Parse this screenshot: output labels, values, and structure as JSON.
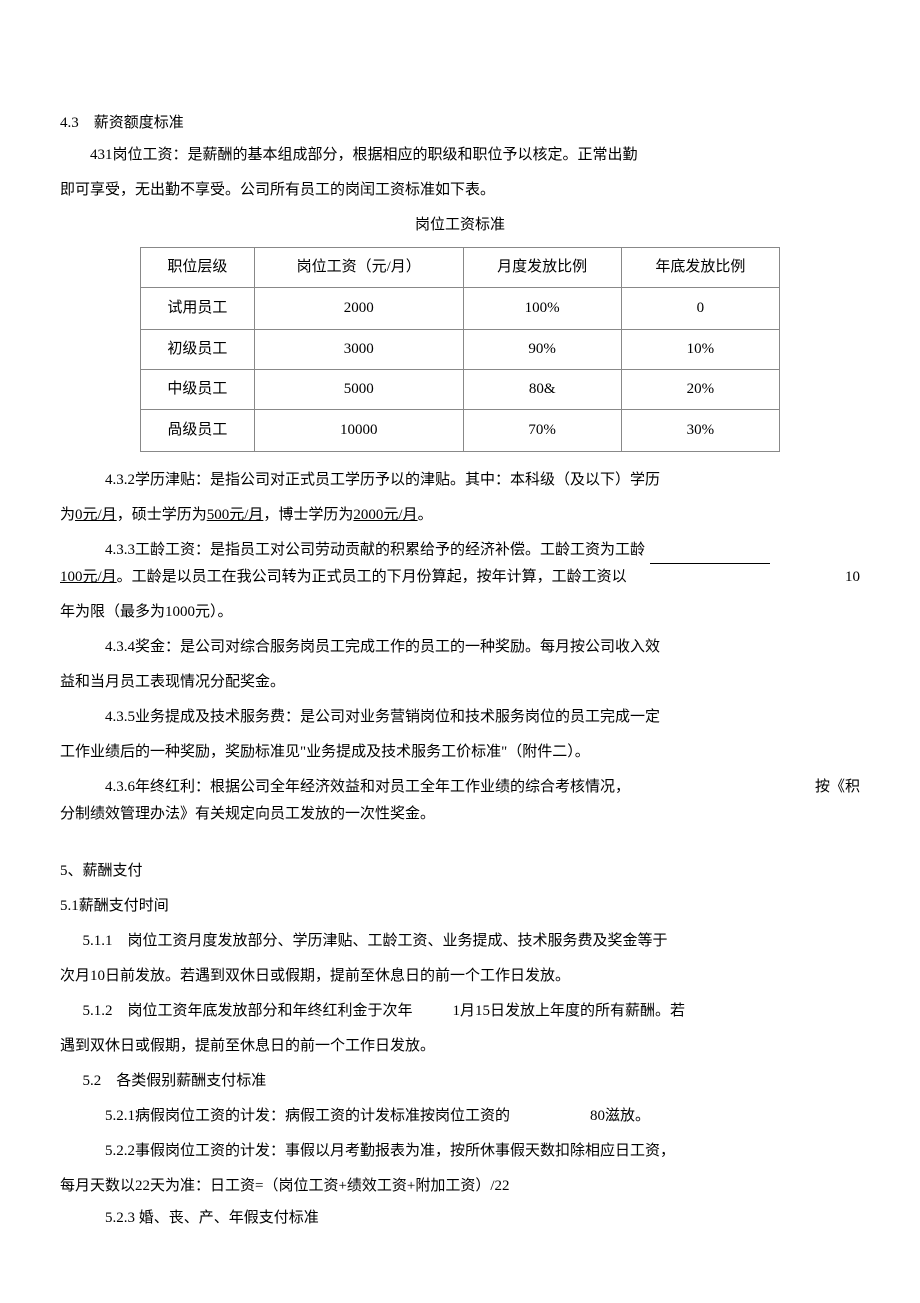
{
  "section_4_3": {
    "heading": "4.3　薪资额度标准",
    "p431_l1": "431岗位工资：是薪酬的基本组成部分，根据相应的职级和职位予以核定。正常出勤",
    "p431_l2": "即可享受，无出勤不享受。公司所有员工的岗闰工资标准如下表。",
    "table_title": "岗位工资标准",
    "table": {
      "headers": [
        "职位层级",
        "岗位工资（元/月）",
        "月度发放比例",
        "年底发放比例"
      ],
      "rows": [
        [
          "试用员工",
          "2000",
          "100%",
          "0"
        ],
        [
          "初级员工",
          "3000",
          "90%",
          "10%"
        ],
        [
          "中级员工",
          "5000",
          "80&",
          "20%"
        ],
        [
          "咼级员工",
          "10000",
          "70%",
          "30%"
        ]
      ]
    },
    "p432_l1_a": "4.3.2学历津贴：是指公司对正式员工学历予以的津贴。其中：本科级（及以下）学历",
    "p432_l2_a": "为",
    "p432_l2_b": "0元/月",
    "p432_l2_c": "，硕士学历为",
    "p432_l2_d": "500元/月",
    "p432_l2_e": "，博士学历为",
    "p432_l2_f": "2000元/月",
    "p432_l2_g": "。",
    "p433_l1_left": "4.3.3工龄工资：是指员工对公司劳动贡献的积累给予的经济补偿。工龄工资为工龄",
    "p433_l2_left_a": "100元/月",
    "p433_l2_left_b": "。工龄是以员工在我公司转为正式员工的下月份算起，按年计算，工龄工资以",
    "p433_l2_right": "10",
    "p433_l3": "年为限（最多为1000元）。",
    "p434_l1": "4.3.4奖金：是公司对综合服务岗员工完成工作的员工的一种奖励。每月按公司收入效",
    "p434_l2": "益和当月员工表现情况分配奖金。",
    "p435_l1": "4.3.5业务提成及技术服务费：是公司对业务营销岗位和技术服务岗位的员工完成一定",
    "p435_l2": "工作业绩后的一种奖励，奖励标准见\"业务提成及技术服务工价标准\"（附件二）。",
    "p436_l1_left": "4.3.6年终红利：根据公司全年经济效益和对员工全年工作业绩的综合考核情况，",
    "p436_l1_right": "按《积",
    "p436_l2": "分制绩效管理办法》有关规定向员工发放的一次性奖金。"
  },
  "section_5": {
    "heading": "5、薪酬支付",
    "sub_51": "5.1薪酬支付时间",
    "p511_l1": "5.1.1　岗位工资月度发放部分、学历津贴、工龄工资、业务提成、技术服务费及奖金等于",
    "p511_l2": "次月10日前发放。若遇到双休日或假期，提前至休息日的前一个工作日发放。",
    "p512_l1_a": "5.1.2　岗位工资年底发放部分和年终红利金于次年",
    "p512_l1_b": "1月15日发放上年度的所有薪酬。若",
    "p512_l2": "遇到双休日或假期，提前至休息日的前一个工作日发放。",
    "sub_52": "5.2　各类假别薪酬支付标准",
    "p521_a": "5.2.1病假岗位工资的计发：病假工资的计发标准按岗位工资的",
    "p521_b": "80滋放。",
    "p522": "5.2.2事假岗位工资的计发：事假以月考勤报表为准，按所休事假天数扣除相应日工资，",
    "p522_l2": "每月天数以22天为准：日工资=（岗位工资+绩效工资+附加工资）/22",
    "p523": "5.2.3 婚、丧、产、年假支付标准"
  }
}
